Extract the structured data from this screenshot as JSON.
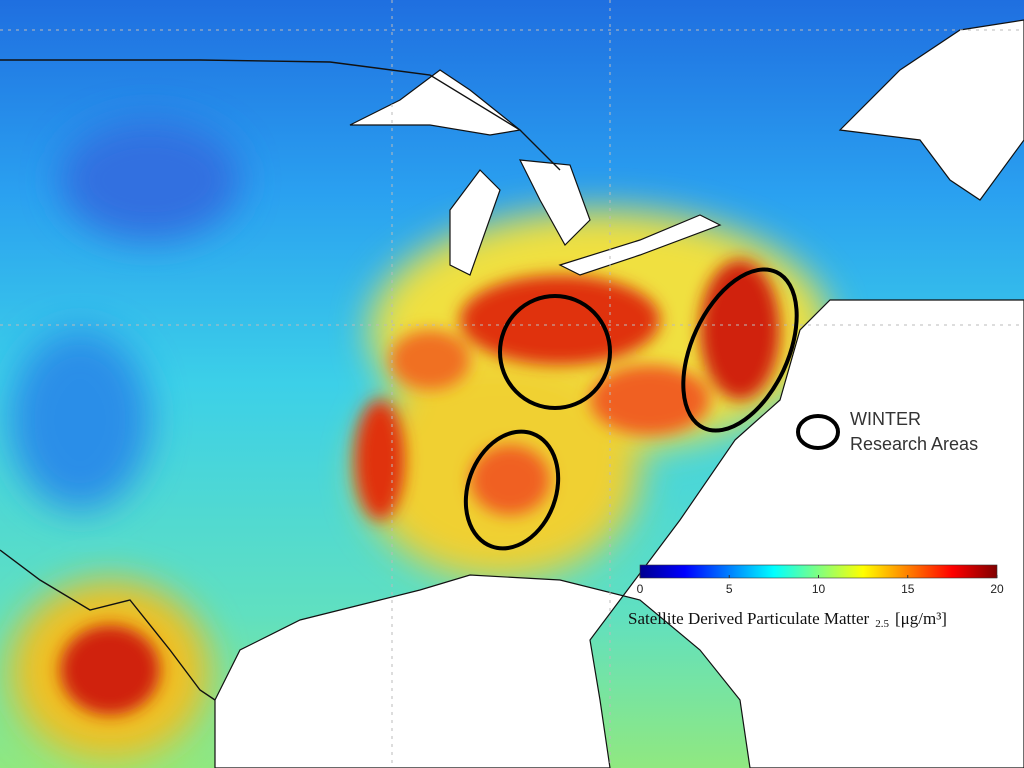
{
  "legend": {
    "title": "WINTER",
    "subtitle": "Research Areas"
  },
  "colorbar": {
    "colormap": "jet",
    "range": [
      0,
      20
    ],
    "ticks": [
      0,
      5,
      10,
      15,
      20
    ],
    "label": "Satellite Derived Particulate Matter",
    "subscript": "2.5",
    "unit": "[μg/m³]"
  }
}
